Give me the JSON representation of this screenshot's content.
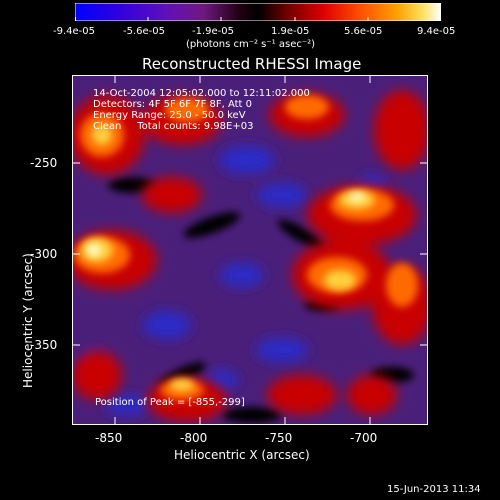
{
  "colorbar": {
    "tick_labels": [
      "-9.4e-05",
      "-5.6e-05",
      "-1.9e-05",
      "1.9e-05",
      "5.6e-05",
      "9.4e-05"
    ],
    "unit_label": "(photons cm⁻² s⁻¹ asec⁻²)",
    "colors": [
      "#0000ff",
      "#2f00e0",
      "#5a10c0",
      "#7a20a0",
      "#600040",
      "#300010",
      "#000000",
      "#6a0000",
      "#c00000",
      "#ff3000",
      "#ff8000",
      "#ffc000",
      "#ffff80",
      "#ffffff"
    ]
  },
  "title": "Reconstructed RHESSI Image",
  "info": {
    "time_range": "14-Oct-2004 12:05:02.000 to 12:11:02.000",
    "detectors": "Detectors: 4F 5F 6F 7F 8F, Att 0",
    "energy": "Energy Range: 25.0 - 50.0 keV",
    "clean": "Clean     Total counts: 9.98E+03",
    "peak": "Position of Peak = [-855,-299]"
  },
  "axes": {
    "xlabel": "Heliocentric X (arcsec)",
    "ylabel": "Heliocentric Y (arcsec)",
    "xticks": [
      "-850",
      "-800",
      "-750",
      "-700"
    ],
    "yticks": [
      "-250",
      "-300",
      "-350"
    ]
  },
  "timestamp": "15-Jun-2013 11:34",
  "map": {
    "background": "#4a1f7a",
    "blue_color": "#2828c8",
    "dark_color": "#000000",
    "red_color": "#c80000",
    "orange_color": "#ff6a00",
    "yellow_color": "#ffd040",
    "white_color": "#ffffd0"
  }
}
